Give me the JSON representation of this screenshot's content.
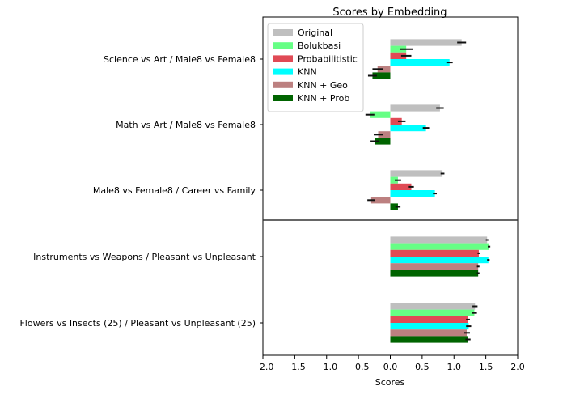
{
  "chart_data": {
    "type": "bar",
    "orientation": "horizontal",
    "title": "Scores by Embedding",
    "xlabel": "Scores",
    "ylabel": "",
    "xlim": [
      -2.0,
      2.0
    ],
    "xticks": [
      "−2.0",
      "−1.5",
      "−1.0",
      "−0.5",
      "0.0",
      "0.5",
      "1.0",
      "1.5",
      "2.0"
    ],
    "grid": false,
    "legend_position": "top-left",
    "separator_after_category": 2,
    "categories": [
      "Science vs Art / Male8 vs Female8",
      "Math vs Art / Male8 vs Female8",
      "Male8 vs Female8 /  Career vs Family",
      "Instruments vs Weapons /  Pleasant vs Unpleasant",
      "Flowers vs Insects (25) / Pleasant vs Unpleasant (25)"
    ],
    "series": [
      {
        "name": "Original",
        "color": "#bfbfbf",
        "values": [
          1.12,
          0.78,
          0.82,
          1.52,
          1.33
        ],
        "errors": [
          0.07,
          0.06,
          0.03,
          0.02,
          0.04
        ]
      },
      {
        "name": "Bolukbasi",
        "color": "#66ff85",
        "values": [
          0.25,
          -0.32,
          0.12,
          1.55,
          1.32
        ],
        "errors": [
          0.1,
          0.07,
          0.05,
          0.02,
          0.04
        ]
      },
      {
        "name": "Probabilitistic",
        "color": "#e04a55",
        "values": [
          0.25,
          0.18,
          0.33,
          1.39,
          1.22
        ],
        "errors": [
          0.08,
          0.06,
          0.04,
          0.02,
          0.03
        ]
      },
      {
        "name": "KNN",
        "color": "#00ffff",
        "values": [
          0.93,
          0.56,
          0.7,
          1.54,
          1.23
        ],
        "errors": [
          0.05,
          0.05,
          0.03,
          0.02,
          0.04
        ]
      },
      {
        "name": "KNN + Geo",
        "color": "#bc8080",
        "values": [
          -0.2,
          -0.19,
          -0.3,
          1.38,
          1.2
        ],
        "errors": [
          0.08,
          0.07,
          0.06,
          0.02,
          0.05
        ]
      },
      {
        "name": "KNN + Prob",
        "color": "#006400",
        "values": [
          -0.28,
          -0.24,
          0.12,
          1.38,
          1.22
        ],
        "errors": [
          0.07,
          0.07,
          0.04,
          0.02,
          0.04
        ]
      }
    ]
  }
}
